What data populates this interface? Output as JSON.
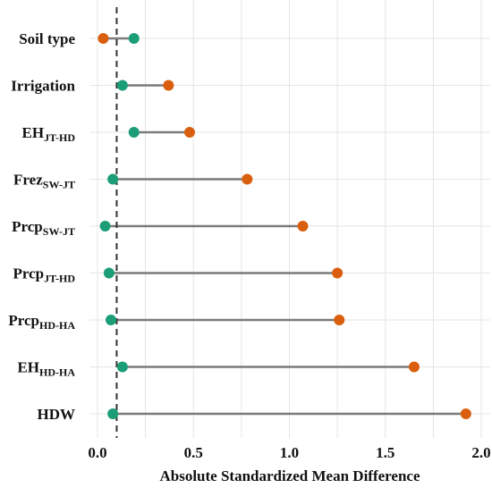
{
  "chart_data": {
    "type": "dumbbell",
    "xlabel": "Absolute Standardized Mean Difference",
    "xlim": [
      0,
      2.0
    ],
    "xticks": [
      "0.0",
      "0.5",
      "1.0",
      "1.5",
      "2.0"
    ],
    "threshold": 0.1,
    "grid": true,
    "colors": {
      "orange": "#d95f0e",
      "green": "#1b9e77",
      "segment": "#7a7a7a"
    },
    "categories": [
      {
        "base": "Soil type",
        "sub": "",
        "orange": 0.03,
        "green": 0.19
      },
      {
        "base": "Irrigation",
        "sub": "",
        "orange": 0.37,
        "green": 0.13
      },
      {
        "base": "EH",
        "sub": "JT-HD",
        "orange": 0.48,
        "green": 0.19
      },
      {
        "base": "Frez",
        "sub": "SW-JT",
        "orange": 0.78,
        "green": 0.08
      },
      {
        "base": "Prcp",
        "sub": "SW-JT",
        "orange": 1.07,
        "green": 0.04
      },
      {
        "base": "Prcp",
        "sub": "JT-HD",
        "orange": 1.25,
        "green": 0.06
      },
      {
        "base": "Prcp",
        "sub": "HD-HA",
        "orange": 1.26,
        "green": 0.07
      },
      {
        "base": "EH",
        "sub": "HD-HA",
        "orange": 1.65,
        "green": 0.13
      },
      {
        "base": "HDW",
        "sub": "",
        "orange": 1.92,
        "green": 0.08
      }
    ]
  }
}
